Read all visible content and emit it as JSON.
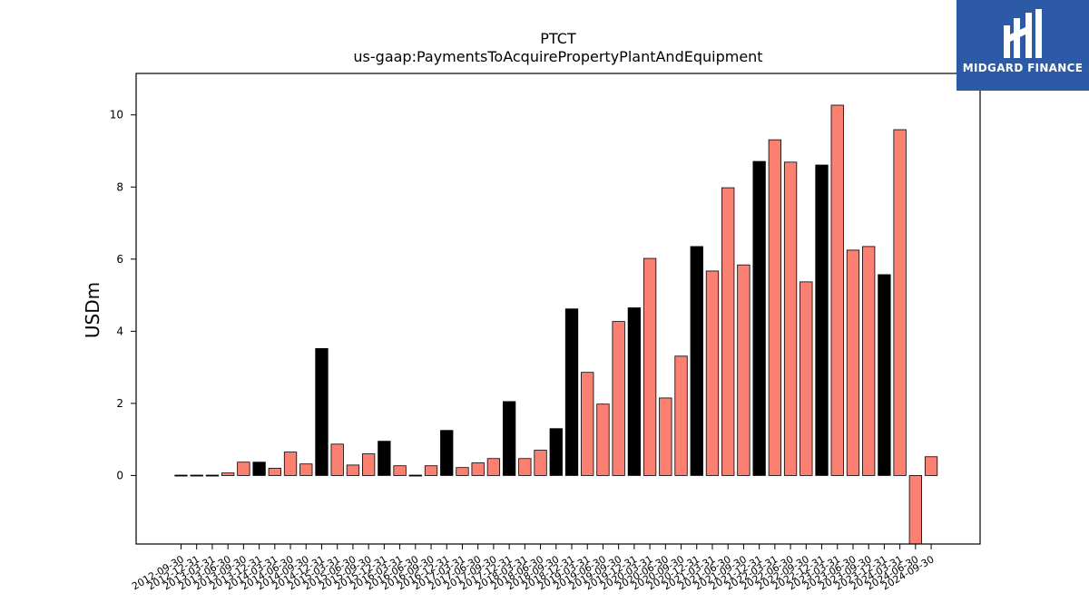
{
  "brand": {
    "name": "MIDGARD FINANCE",
    "bg_color": "#2d5aa6"
  },
  "chart_data": {
    "type": "bar",
    "title": "PTCT",
    "subtitle": "us-gaap:PaymentsToAcquirePropertyPlantAndEquipment",
    "xlabel": "",
    "ylabel": "USDm",
    "ylim": [
      -1.9,
      11.15
    ],
    "yticks": [
      0,
      2,
      4,
      6,
      8,
      10
    ],
    "grid": false,
    "colors": {
      "default": "#fa8072",
      "highlight": "#000000",
      "edge": "#000000"
    },
    "categories": [
      "2012-09-30",
      "2012-12-31",
      "2013-03-31",
      "2013-06-30",
      "2013-09-30",
      "2013-12-31",
      "2014-03-31",
      "2014-06-30",
      "2014-09-30",
      "2014-12-31",
      "2015-03-31",
      "2015-06-30",
      "2015-09-30",
      "2015-12-31",
      "2016-03-31",
      "2016-06-30",
      "2016-09-30",
      "2016-12-31",
      "2017-03-31",
      "2017-06-30",
      "2017-09-30",
      "2017-12-31",
      "2018-03-31",
      "2018-06-30",
      "2018-09-30",
      "2018-12-31",
      "2019-03-31",
      "2019-06-30",
      "2019-09-30",
      "2019-12-31",
      "2020-03-31",
      "2020-06-30",
      "2020-09-30",
      "2020-12-31",
      "2021-03-31",
      "2021-06-30",
      "2021-09-30",
      "2021-12-31",
      "2022-03-31",
      "2022-06-30",
      "2022-09-30",
      "2022-12-31",
      "2023-03-31",
      "2023-06-30",
      "2023-09-30",
      "2023-12-31",
      "2024-03-31",
      "2024-06-30",
      "2024-09-30"
    ],
    "values": [
      0.01,
      0.01,
      0.01,
      0.07,
      0.37,
      0.37,
      0.2,
      0.65,
      0.32,
      3.52,
      0.87,
      0.29,
      0.6,
      0.95,
      0.27,
      0.01,
      0.27,
      1.25,
      0.22,
      0.35,
      0.47,
      2.05,
      0.47,
      0.7,
      1.3,
      4.62,
      2.86,
      1.98,
      4.27,
      4.65,
      6.02,
      2.15,
      3.31,
      6.35,
      5.67,
      7.98,
      5.84,
      8.71,
      9.31,
      8.69,
      5.37,
      8.61,
      10.27,
      6.25,
      6.35,
      5.57,
      9.59,
      -1.9,
      0.52
    ],
    "highlight_categories": [
      "2012-09-30",
      "2012-12-31",
      "2013-03-31",
      "2013-12-31",
      "2014-12-31",
      "2015-12-31",
      "2016-06-30",
      "2016-12-31",
      "2017-12-31",
      "2018-09-30",
      "2018-12-31",
      "2019-12-31",
      "2020-12-31",
      "2021-12-31",
      "2022-12-31",
      "2023-12-31"
    ]
  }
}
